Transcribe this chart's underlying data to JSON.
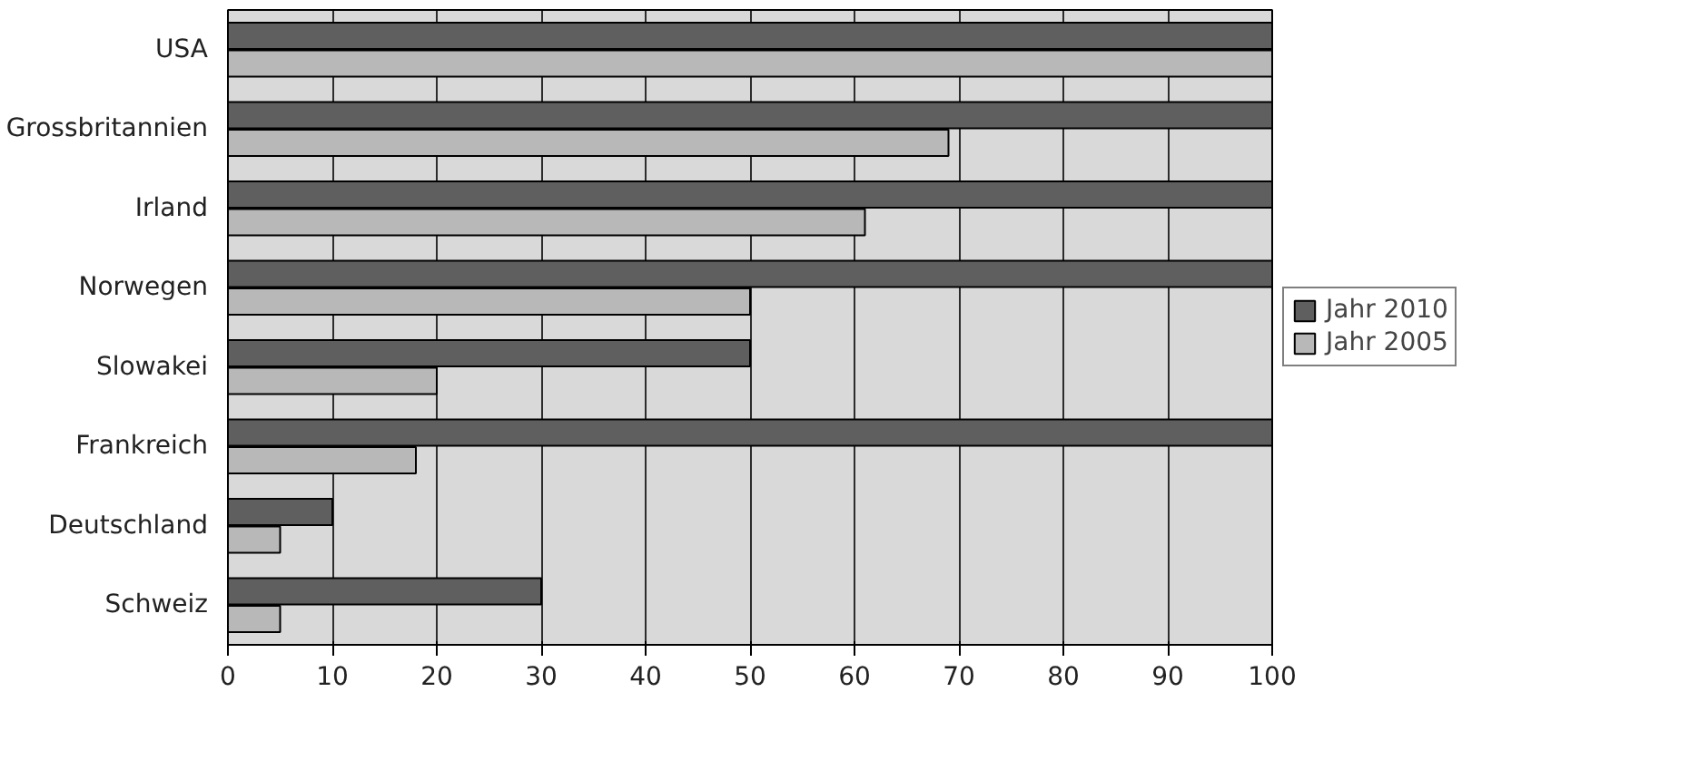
{
  "chart_data": {
    "type": "bar",
    "orientation": "horizontal",
    "categories": [
      "USA",
      "Grossbritannien",
      "Irland",
      "Norwegen",
      "Slowakei",
      "Frankreich",
      "Deutschland",
      "Schweiz"
    ],
    "series": [
      {
        "name": "Jahr 2010",
        "color": "#5f5f5f",
        "values": [
          100,
          100,
          100,
          100,
          50,
          100,
          10,
          30
        ]
      },
      {
        "name": "Jahr 2005",
        "color": "#b8b8b8",
        "values": [
          100,
          69,
          61,
          50,
          20,
          18,
          5,
          5
        ]
      }
    ],
    "xlim": [
      0,
      100
    ],
    "xticks": [
      0,
      10,
      20,
      30,
      40,
      50,
      60,
      70,
      80,
      90,
      100
    ],
    "grid": "x",
    "legend": "right"
  }
}
